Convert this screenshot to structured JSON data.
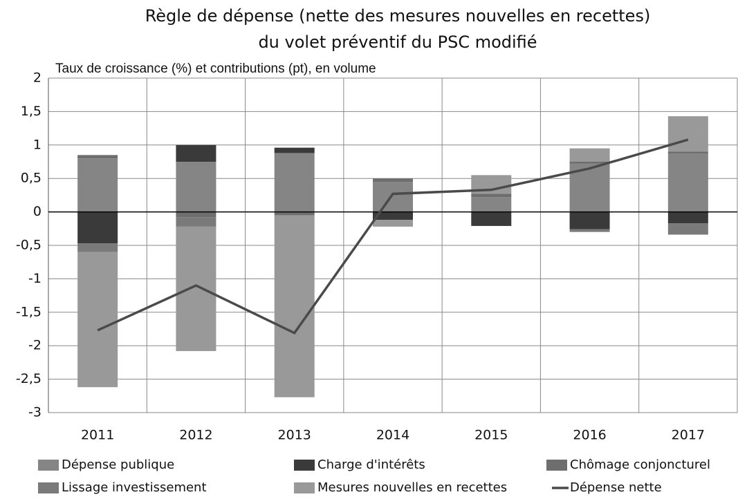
{
  "chart_data": {
    "type": "bar",
    "stacked": true,
    "title": [
      "Règle de dépense (nette des mesures nouvelles en recettes)",
      "du volet préventif du PSC modifié"
    ],
    "subtitle": "Taux de croissance (%) et contributions (pt), en volume",
    "categories": [
      "2011",
      "2012",
      "2013",
      "2014",
      "2015",
      "2016",
      "2017"
    ],
    "series": [
      {
        "name": "Dépense publique",
        "color": "#858585",
        "values": [
          0.8,
          0.75,
          0.88,
          0.45,
          0.22,
          0.72,
          0.87
        ]
      },
      {
        "name": "Charge d'intérêts",
        "color": "#3a3a3a",
        "values": [
          -0.47,
          0.25,
          0.08,
          -0.12,
          -0.21,
          -0.26,
          -0.17
        ]
      },
      {
        "name": "Chômage conjoncturel",
        "color": "#6e6e6e",
        "values": [
          0.05,
          -0.08,
          -0.05,
          0.05,
          0.05,
          0.03,
          0.03
        ]
      },
      {
        "name": "Lissage investissement",
        "color": "#7a7a7a",
        "values": [
          -0.13,
          -0.14,
          0,
          0,
          0,
          -0.04,
          -0.17
        ]
      },
      {
        "name": "Mesures nouvelles en recettes",
        "color": "#999999",
        "values": [
          -2.02,
          -1.86,
          -2.72,
          -0.1,
          0.28,
          0.2,
          0.53
        ]
      },
      {
        "name": "Dépense nette",
        "type": "line",
        "color": "#4a4a4a",
        "values": [
          -1.77,
          -1.1,
          -1.81,
          0.27,
          0.33,
          0.65,
          1.08
        ]
      }
    ],
    "ylim": [
      -3,
      2
    ],
    "yticks": [
      -3,
      {
        "value": -2.5,
        "label": "-2,5"
      },
      -2,
      {
        "value": -1.5,
        "label": "-1,5"
      },
      -1,
      {
        "value": -0.5,
        "label": "-0,5"
      },
      0,
      {
        "value": 0.5,
        "label": "0,5"
      },
      1,
      {
        "value": 1.5,
        "label": "1,5"
      },
      2
    ],
    "grid": true,
    "legend": "bottom"
  }
}
